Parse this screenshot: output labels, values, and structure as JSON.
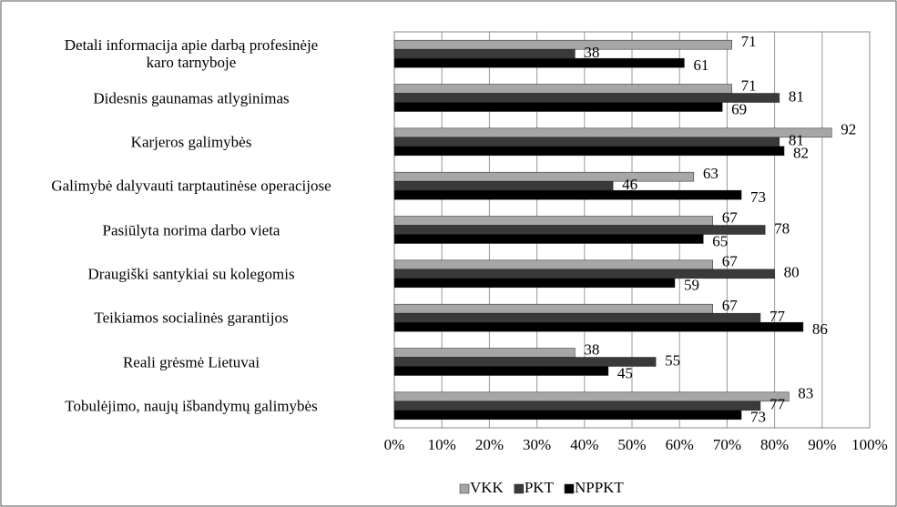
{
  "chart_data": {
    "type": "bar",
    "orientation": "horizontal",
    "categories": [
      "Detali informacija apie darbą profesinėje\nkaro tarnyboje",
      "Didesnis gaunamas atlyginimas",
      "Karjeros galimybės",
      "Galimybė dalyvauti tarptautinėse operacijose",
      "Pasiūlyta norima darbo vieta",
      "Draugiški santykiai su kolegomis",
      "Teikiamos socialinės garantijos",
      "Reali grėsmė Lietuvai",
      "Tobulėjimo, naujų išbandymų galimybės"
    ],
    "series": [
      {
        "name": "VKK",
        "color": "#a6a6a6",
        "values": [
          71,
          71,
          92,
          63,
          67,
          67,
          67,
          38,
          83
        ]
      },
      {
        "name": "PKT",
        "color": "#3a3a3a",
        "values": [
          38,
          81,
          81,
          46,
          78,
          80,
          77,
          55,
          77
        ]
      },
      {
        "name": "NPPKT",
        "color": "#000000",
        "values": [
          61,
          69,
          82,
          73,
          65,
          59,
          86,
          45,
          73
        ]
      }
    ],
    "xlim": [
      0,
      100
    ],
    "xticks": [
      {
        "value": 0,
        "label": "0%"
      },
      {
        "value": 10,
        "label": "10%"
      },
      {
        "value": 20,
        "label": "20%"
      },
      {
        "value": 30,
        "label": "30%"
      },
      {
        "value": 40,
        "label": "40%"
      },
      {
        "value": 50,
        "label": "50%"
      },
      {
        "value": 60,
        "label": "60%"
      },
      {
        "value": 70,
        "label": "70%"
      },
      {
        "value": 80,
        "label": "80%"
      },
      {
        "value": 90,
        "label": "90%"
      },
      {
        "value": 100,
        "label": "100%"
      }
    ],
    "grid": true,
    "legend": "bottom"
  }
}
